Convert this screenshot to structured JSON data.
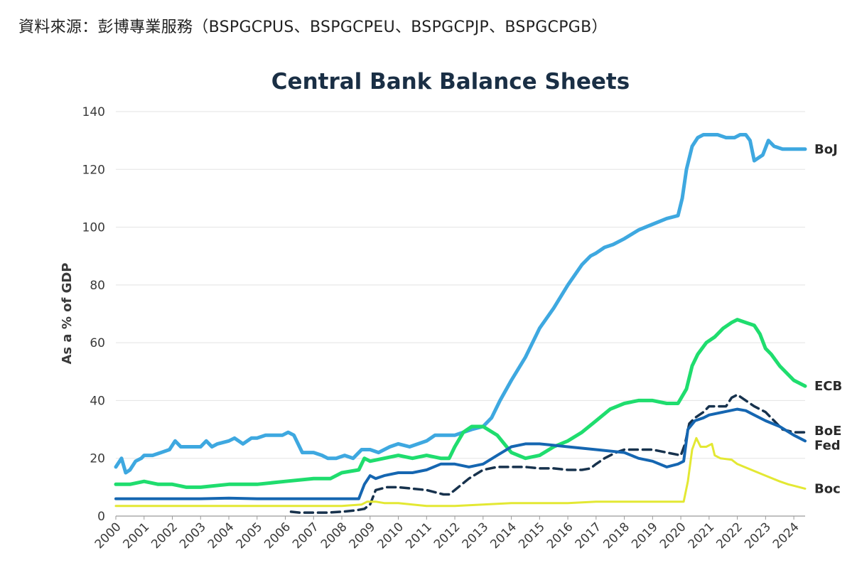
{
  "source_note": "資料來源：彭博專業服務（BSPGCPUS、BSPGCPEU、BSPGCPJP、BSPGCPGB）",
  "chart_data": {
    "type": "line",
    "title": "Central Bank Balance Sheets",
    "xlabel": "",
    "ylabel": "As a % of GDP",
    "xlim": [
      2000.0,
      2024.4
    ],
    "ylim": [
      0,
      140
    ],
    "yticks": [
      0,
      20,
      40,
      60,
      80,
      100,
      120,
      140
    ],
    "xticks": [
      2000,
      2001,
      2002,
      2003,
      2004,
      2005,
      2006,
      2007,
      2008,
      2009,
      2010,
      2011,
      2012,
      2013,
      2014,
      2015,
      2016,
      2017,
      2018,
      2019,
      2020,
      2021,
      2022,
      2023,
      2024
    ],
    "grid": "horizontal",
    "legend": "end-of-line labels",
    "series": [
      {
        "name": "BoJ",
        "color": "#3ea8e0",
        "width": 5,
        "dash": "",
        "x": [
          2000.0,
          2000.2,
          2000.35,
          2000.5,
          2000.7,
          2000.9,
          2001.0,
          2001.3,
          2001.6,
          2001.9,
          2002.1,
          2002.3,
          2002.6,
          2003.0,
          2003.2,
          2003.4,
          2003.6,
          2004.0,
          2004.2,
          2004.5,
          2004.8,
          2005.0,
          2005.3,
          2005.6,
          2005.9,
          2006.1,
          2006.3,
          2006.6,
          2007.0,
          2007.3,
          2007.5,
          2007.8,
          2008.1,
          2008.4,
          2008.7,
          2009.0,
          2009.3,
          2009.7,
          2010.0,
          2010.4,
          2010.7,
          2011.0,
          2011.3,
          2011.6,
          2012.0,
          2012.3,
          2012.6,
          2013.0,
          2013.3,
          2013.6,
          2014.0,
          2014.5,
          2015.0,
          2015.5,
          2016.0,
          2016.5,
          2016.8,
          2017.0,
          2017.3,
          2017.6,
          2018.0,
          2018.5,
          2019.0,
          2019.5,
          2019.9,
          2020.05,
          2020.2,
          2020.4,
          2020.6,
          2020.8,
          2021.0,
          2021.3,
          2021.6,
          2021.9,
          2022.1,
          2022.3,
          2022.45,
          2022.6,
          2022.9,
          2023.1,
          2023.3,
          2023.6,
          2023.9,
          2024.1,
          2024.4
        ],
        "values": [
          17,
          20,
          15,
          16,
          19,
          20,
          21,
          21,
          22,
          23,
          26,
          24,
          24,
          24,
          26,
          24,
          25,
          26,
          27,
          25,
          27,
          27,
          28,
          28,
          28,
          29,
          28,
          22,
          22,
          21,
          20,
          20,
          21,
          20,
          23,
          23,
          22,
          24,
          25,
          24,
          25,
          26,
          28,
          28,
          28,
          29,
          30,
          31,
          34,
          40,
          47,
          55,
          65,
          72,
          80,
          87,
          90,
          91,
          93,
          94,
          96,
          99,
          101,
          103,
          104,
          110,
          120,
          128,
          131,
          132,
          132,
          132,
          131,
          131,
          132,
          132,
          130,
          123,
          125,
          130,
          128,
          127,
          127,
          127,
          127
        ]
      },
      {
        "name": "ECB",
        "color": "#1fdd6e",
        "width": 5,
        "dash": "",
        "x": [
          2000.0,
          2000.5,
          2001.0,
          2001.5,
          2002.0,
          2002.5,
          2003.0,
          2004.0,
          2005.0,
          2006.0,
          2007.0,
          2007.6,
          2008.0,
          2008.6,
          2008.8,
          2009.0,
          2009.5,
          2010.0,
          2010.5,
          2011.0,
          2011.5,
          2011.8,
          2012.0,
          2012.3,
          2012.6,
          2013.0,
          2013.5,
          2014.0,
          2014.5,
          2015.0,
          2015.5,
          2016.0,
          2016.5,
          2017.0,
          2017.5,
          2018.0,
          2018.5,
          2019.0,
          2019.5,
          2019.9,
          2020.2,
          2020.4,
          2020.6,
          2020.9,
          2021.2,
          2021.5,
          2021.8,
          2022.0,
          2022.3,
          2022.6,
          2022.8,
          2023.0,
          2023.2,
          2023.5,
          2023.8,
          2024.0,
          2024.4
        ],
        "values": [
          11,
          11,
          12,
          11,
          11,
          10,
          10,
          11,
          11,
          12,
          13,
          13,
          15,
          16,
          20,
          19,
          20,
          21,
          20,
          21,
          20,
          20,
          24,
          29,
          31,
          31,
          28,
          22,
          20,
          21,
          24,
          26,
          29,
          33,
          37,
          39,
          40,
          40,
          39,
          39,
          44,
          52,
          56,
          60,
          62,
          65,
          67,
          68,
          67,
          66,
          63,
          58,
          56,
          52,
          49,
          47,
          45
        ]
      },
      {
        "name": "BoE",
        "color": "#17324d",
        "width": 3.5,
        "dash": "12 7",
        "x": [
          2006.2,
          2006.5,
          2007.0,
          2007.5,
          2008.0,
          2008.5,
          2008.8,
          2009.0,
          2009.2,
          2009.6,
          2010.0,
          2010.5,
          2011.0,
          2011.4,
          2011.6,
          2011.8,
          2012.0,
          2012.5,
          2013.0,
          2013.5,
          2014.0,
          2014.5,
          2015.0,
          2015.5,
          2016.0,
          2016.5,
          2016.8,
          2017.0,
          2017.3,
          2017.7,
          2018.0,
          2018.5,
          2019.0,
          2019.5,
          2020.0,
          2020.15,
          2020.3,
          2020.5,
          2020.8,
          2021.0,
          2021.3,
          2021.6,
          2021.8,
          2022.0,
          2022.3,
          2022.6,
          2023.0,
          2023.3,
          2023.6,
          2024.0,
          2024.4
        ],
        "values": [
          1.5,
          1.2,
          1.2,
          1.2,
          1.5,
          2,
          2.5,
          4,
          9,
          10,
          10,
          9.5,
          9,
          8,
          7.5,
          7.5,
          9,
          13,
          16,
          17,
          17,
          17,
          16.5,
          16.5,
          16,
          16,
          16.5,
          18,
          20,
          22,
          23,
          23,
          23,
          22,
          21,
          25,
          32,
          34,
          36,
          38,
          38,
          38,
          41,
          42,
          40,
          38,
          36,
          33,
          30,
          29,
          29
        ]
      },
      {
        "name": "Fed",
        "color": "#1566b1",
        "width": 4,
        "dash": "",
        "x": [
          2000.0,
          2001.0,
          2002.0,
          2003.0,
          2004.0,
          2005.0,
          2006.0,
          2007.0,
          2008.0,
          2008.6,
          2008.8,
          2009.0,
          2009.2,
          2009.5,
          2010.0,
          2010.5,
          2011.0,
          2011.5,
          2012.0,
          2012.5,
          2013.0,
          2013.5,
          2014.0,
          2014.5,
          2015.0,
          2015.5,
          2016.0,
          2017.0,
          2018.0,
          2018.5,
          2019.0,
          2019.5,
          2019.9,
          2020.1,
          2020.25,
          2020.5,
          2020.8,
          2021.0,
          2021.5,
          2022.0,
          2022.3,
          2022.6,
          2023.0,
          2023.5,
          2024.0,
          2024.4
        ],
        "values": [
          6,
          6,
          6,
          6,
          6.2,
          6,
          6,
          6,
          6,
          6,
          11,
          14,
          13,
          14,
          15,
          15,
          16,
          18,
          18,
          17,
          18,
          21,
          24,
          25,
          25,
          24.5,
          24,
          23,
          22,
          20,
          19,
          17,
          18,
          19,
          30,
          33,
          34,
          35,
          36,
          37,
          36.5,
          35,
          33,
          31,
          28,
          26
        ]
      },
      {
        "name": "Boc",
        "color": "#e3e833",
        "width": 3,
        "dash": "",
        "x": [
          2000.0,
          2001.0,
          2002.0,
          2003.0,
          2004.0,
          2005.0,
          2006.0,
          2007.0,
          2008.0,
          2008.7,
          2008.9,
          2009.2,
          2009.5,
          2010.0,
          2010.5,
          2011.0,
          2012.0,
          2013.0,
          2014.0,
          2015.0,
          2016.0,
          2017.0,
          2018.0,
          2019.0,
          2019.9,
          2020.1,
          2020.25,
          2020.4,
          2020.55,
          2020.7,
          2020.9,
          2021.1,
          2021.2,
          2021.4,
          2021.8,
          2022.0,
          2022.5,
          2023.0,
          2023.5,
          2023.8,
          2024.0,
          2024.4
        ],
        "values": [
          3.5,
          3.5,
          3.5,
          3.5,
          3.5,
          3.5,
          3.5,
          3.5,
          3.5,
          4,
          5,
          5,
          4.5,
          4.5,
          4,
          3.5,
          3.5,
          4,
          4.5,
          4.5,
          4.5,
          5,
          5,
          5,
          5,
          5,
          12,
          23,
          27,
          24,
          24,
          25,
          21,
          20,
          19.5,
          18,
          16,
          14,
          12,
          11,
          10.5,
          9.5
        ]
      }
    ]
  }
}
